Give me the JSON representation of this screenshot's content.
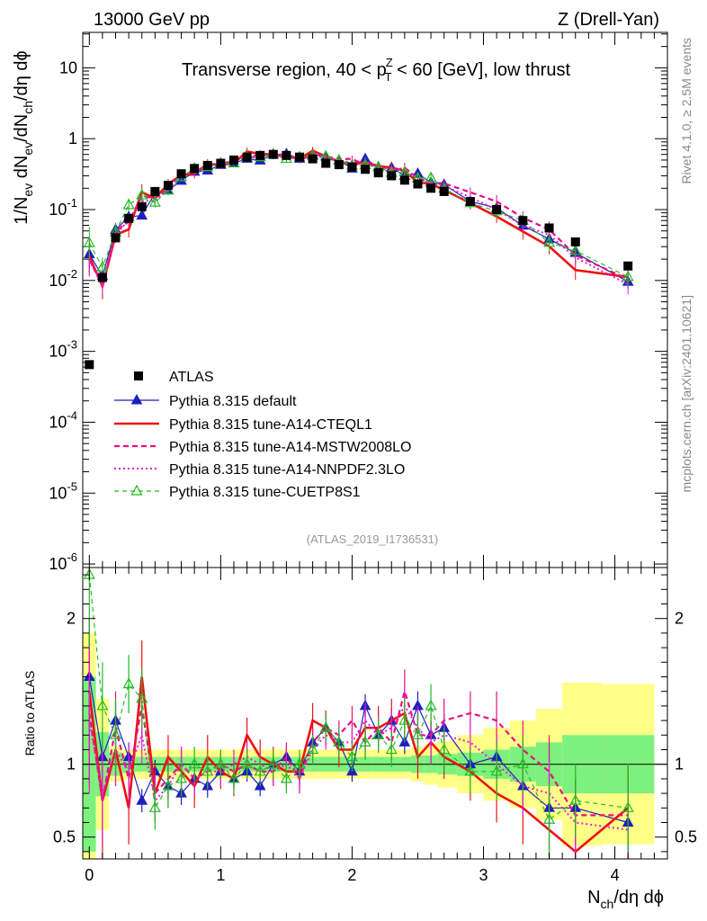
{
  "header": {
    "left": "13000 GeV pp",
    "right": "Z (Drell-Yan)"
  },
  "side_labels": {
    "rivet": "Rivet 4.1.0, ≥ 2.5M events",
    "mcplots": "mcplots.cern.ch [arXiv:2401.10621]"
  },
  "chart_data": {
    "type": "line",
    "title": "Transverse region, 40 < p_T^Z < 60 [GeV], low thrust",
    "analysis_tag": "(ATLAS_2019_I1736531)",
    "xlabel": "N_ch/dη dϕ",
    "ylabel_main": "1/N_ev dN_ev/dN_ch/dη dϕ",
    "ylabel_ratio": "Ratio to ATLAS",
    "xlim": [
      -0.05,
      4.4
    ],
    "ylim_main_log10": [
      -6.05,
      1.5
    ],
    "ylim_ratio": [
      0.35,
      2.35
    ],
    "x_ticks": [
      "0",
      "1",
      "2",
      "3",
      "4"
    ],
    "y_ticks_main": [
      {
        "base": "10",
        "exp": "-6",
        "log": -6
      },
      {
        "base": "10",
        "exp": "-5",
        "log": -5
      },
      {
        "base": "10",
        "exp": "-4",
        "log": -4
      },
      {
        "base": "10",
        "exp": "-3",
        "log": -3
      },
      {
        "base": "10",
        "exp": "-2",
        "log": -2
      },
      {
        "base": "10",
        "exp": "-1",
        "log": -1
      },
      {
        "base": "1",
        "exp": "",
        "log": 0
      },
      {
        "base": "10",
        "exp": "",
        "log": 1
      }
    ],
    "y_ticks_ratio": [
      "0.5",
      "1",
      "2"
    ],
    "legend": [
      {
        "label": "ATLAS",
        "style": "atlas"
      },
      {
        "label": "Pythia 8.315 default",
        "style": "default"
      },
      {
        "label": "Pythia 8.315 tune-A14-CTEQL1",
        "style": "cteql1"
      },
      {
        "label": "Pythia 8.315 tune-A14-MSTW2008LO",
        "style": "mstw"
      },
      {
        "label": "Pythia 8.315 tune-A14-NNPDF2.3LO",
        "style": "nnpdf"
      },
      {
        "label": "Pythia 8.315 tune-CUETP8S1",
        "style": "cuetp8s1"
      }
    ],
    "atlas": {
      "x": [
        0.0,
        0.1,
        0.2,
        0.3,
        0.4,
        0.5,
        0.6,
        0.7,
        0.8,
        0.9,
        1.0,
        1.1,
        1.2,
        1.3,
        1.4,
        1.5,
        1.6,
        1.7,
        1.8,
        1.9,
        2.0,
        2.1,
        2.2,
        2.3,
        2.4,
        2.5,
        2.6,
        2.7,
        2.9,
        3.1,
        3.3,
        3.5,
        3.7,
        4.1
      ],
      "y": [
        0.00065,
        0.011,
        0.04,
        0.075,
        0.11,
        0.18,
        0.22,
        0.32,
        0.38,
        0.42,
        0.45,
        0.5,
        0.55,
        0.58,
        0.6,
        0.58,
        0.55,
        0.52,
        0.45,
        0.43,
        0.4,
        0.37,
        0.33,
        0.3,
        0.26,
        0.23,
        0.2,
        0.18,
        0.13,
        0.1,
        0.07,
        0.055,
        0.035,
        0.016
      ],
      "stat_band_ratio": [
        0.6,
        0.22,
        0.08,
        0.06,
        0.05,
        0.05,
        0.05,
        0.05,
        0.05,
        0.05,
        0.05,
        0.05,
        0.05,
        0.05,
        0.05,
        0.05,
        0.05,
        0.05,
        0.05,
        0.05,
        0.05,
        0.05,
        0.05,
        0.05,
        0.05,
        0.06,
        0.06,
        0.07,
        0.08,
        0.1,
        0.12,
        0.15,
        0.2,
        0.2
      ],
      "total_band_ratio": [
        0.9,
        0.45,
        0.12,
        0.1,
        0.1,
        0.1,
        0.1,
        0.1,
        0.1,
        0.1,
        0.1,
        0.1,
        0.1,
        0.1,
        0.1,
        0.1,
        0.1,
        0.1,
        0.1,
        0.1,
        0.1,
        0.1,
        0.1,
        0.1,
        0.1,
        0.12,
        0.14,
        0.16,
        0.2,
        0.25,
        0.3,
        0.38,
        0.56,
        0.55
      ]
    },
    "series": [
      {
        "name": "Pythia 8.315 default",
        "style": "default",
        "ratio": [
          1.6,
          1.05,
          1.3,
          1.05,
          0.75,
          0.95,
          0.85,
          0.8,
          0.9,
          0.85,
          0.95,
          0.9,
          0.95,
          0.85,
          1.0,
          1.05,
          0.95,
          1.15,
          1.25,
          1.15,
          0.95,
          1.4,
          1.2,
          1.3,
          1.15,
          1.4,
          1.2,
          1.25,
          1.0,
          1.05,
          0.85,
          0.7,
          0.7,
          0.6
        ],
        "err": [
          0.4,
          0.2,
          0.12,
          0.1,
          0.08,
          0.08,
          0.08,
          0.08,
          0.08,
          0.08,
          0.07,
          0.07,
          0.07,
          0.07,
          0.07,
          0.07,
          0.07,
          0.07,
          0.07,
          0.07,
          0.07,
          0.08,
          0.08,
          0.08,
          0.08,
          0.1,
          0.1,
          0.1,
          0.1,
          0.15,
          0.15,
          0.15,
          0.18,
          0.2
        ]
      },
      {
        "name": "Pythia 8.315 tune-A14-CTEQL1",
        "style": "cteql1",
        "ratio": [
          1.5,
          0.75,
          1.1,
          0.7,
          1.6,
          0.8,
          1.05,
          0.95,
          0.85,
          1.05,
          0.95,
          0.9,
          1.2,
          1.05,
          1.0,
          0.95,
          0.95,
          1.3,
          1.25,
          1.1,
          1.1,
          1.25,
          1.25,
          1.3,
          1.35,
          1.05,
          1.15,
          1.05,
          0.95,
          0.8,
          0.7,
          0.55,
          0.4,
          0.7
        ],
        "err": [
          0.5,
          0.4,
          0.25,
          0.25,
          0.25,
          0.2,
          0.15,
          0.15,
          0.15,
          0.15,
          0.12,
          0.12,
          0.12,
          0.12,
          0.12,
          0.12,
          0.12,
          0.12,
          0.12,
          0.12,
          0.12,
          0.15,
          0.15,
          0.15,
          0.15,
          0.15,
          0.15,
          0.15,
          0.2,
          0.2,
          0.25,
          0.25,
          0.3,
          0.3
        ]
      },
      {
        "name": "Pythia 8.315 tune-A14-MSTW2008LO",
        "style": "mstw",
        "ratio": [
          1.35,
          0.75,
          1.25,
          0.9,
          1.4,
          0.8,
          0.9,
          1.0,
          0.9,
          0.95,
          1.0,
          0.95,
          1.0,
          0.95,
          0.95,
          1.05,
          0.9,
          1.15,
          1.25,
          1.2,
          1.3,
          1.15,
          1.25,
          1.15,
          1.5,
          1.2,
          1.2,
          1.3,
          1.35,
          1.3,
          1.1,
          0.95,
          0.65,
          0.65
        ],
        "err": [
          0.5,
          0.3,
          0.25,
          0.2,
          0.2,
          0.15,
          0.15,
          0.12,
          0.12,
          0.12,
          0.1,
          0.1,
          0.1,
          0.1,
          0.1,
          0.1,
          0.1,
          0.1,
          0.1,
          0.1,
          0.1,
          0.12,
          0.12,
          0.12,
          0.15,
          0.15,
          0.15,
          0.15,
          0.15,
          0.2,
          0.2,
          0.25,
          0.25,
          0.3
        ]
      },
      {
        "name": "Pythia 8.315 tune-A14-NNPDF2.3LO",
        "style": "nnpdf",
        "ratio": [
          1.3,
          0.8,
          1.1,
          0.95,
          1.2,
          0.75,
          0.85,
          1.0,
          0.9,
          0.95,
          0.95,
          1.0,
          1.05,
          1.0,
          0.95,
          1.0,
          0.9,
          1.1,
          1.2,
          1.15,
          1.15,
          1.3,
          1.2,
          1.25,
          1.4,
          1.25,
          1.15,
          1.2,
          1.15,
          1.0,
          0.85,
          0.8,
          0.6,
          0.55
        ],
        "err": [
          0.5,
          0.3,
          0.25,
          0.2,
          0.2,
          0.15,
          0.15,
          0.12,
          0.12,
          0.12,
          0.1,
          0.1,
          0.1,
          0.1,
          0.1,
          0.1,
          0.1,
          0.1,
          0.1,
          0.1,
          0.1,
          0.12,
          0.12,
          0.12,
          0.15,
          0.15,
          0.15,
          0.15,
          0.15,
          0.2,
          0.2,
          0.25,
          0.25,
          0.3
        ]
      },
      {
        "name": "Pythia 8.315 tune-CUETP8S1",
        "style": "cuetp8s1",
        "ratio": [
          2.3,
          1.4,
          1.2,
          1.55,
          1.45,
          0.7,
          0.85,
          0.9,
          1.0,
          0.95,
          1.0,
          0.9,
          1.0,
          0.95,
          1.0,
          0.9,
          1.0,
          1.1,
          1.25,
          1.15,
          1.05,
          1.15,
          1.2,
          1.1,
          1.3,
          1.2,
          1.4,
          1.1,
          0.95,
          0.95,
          1.0,
          0.62,
          0.75,
          0.7
        ],
        "err": [
          0.5,
          0.3,
          0.25,
          0.2,
          0.2,
          0.15,
          0.15,
          0.12,
          0.12,
          0.12,
          0.1,
          0.1,
          0.1,
          0.1,
          0.1,
          0.1,
          0.1,
          0.1,
          0.1,
          0.1,
          0.1,
          0.12,
          0.12,
          0.12,
          0.15,
          0.15,
          0.15,
          0.15,
          0.15,
          0.2,
          0.2,
          0.25,
          0.25,
          0.3
        ]
      }
    ]
  },
  "colors": {
    "atlas": "#000000",
    "default": "#1f1fbf",
    "cteql1": "#ee1111",
    "mstw": "#e8107e",
    "nnpdf": "#e020d0",
    "cuetp8s1": "#22bb22",
    "band_inner": "#7ef07e",
    "band_outer": "#ffff88",
    "side_text": "#888888",
    "tag_text": "#999999"
  }
}
